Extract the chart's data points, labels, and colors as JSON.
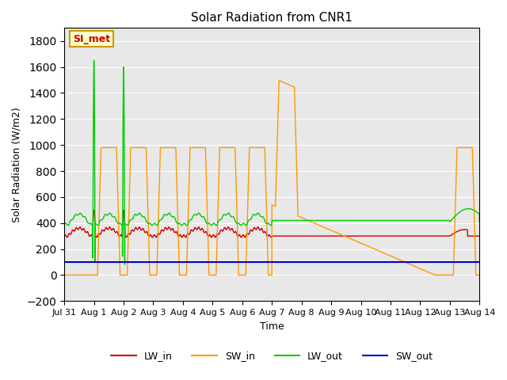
{
  "title": "Solar Radiation from CNR1",
  "xlabel": "Time",
  "ylabel": "Solar Radiation (W/m2)",
  "ylim": [
    -200,
    1900
  ],
  "yticks": [
    -200,
    0,
    200,
    400,
    600,
    800,
    1000,
    1200,
    1400,
    1600,
    1800
  ],
  "bg_color": "#e8e8e8",
  "legend_labels": [
    "LW_in",
    "SW_in",
    "LW_out",
    "SW_out"
  ],
  "legend_colors": [
    "#cc0000",
    "#ff9900",
    "#00cc00",
    "#0000cc"
  ],
  "annotation_text": "SI_met",
  "annotation_box_facecolor": "#ffffcc",
  "annotation_box_edgecolor": "#cc9900",
  "annotation_text_color": "#cc0000",
  "figsize": [
    6.4,
    4.8
  ],
  "dpi": 100
}
